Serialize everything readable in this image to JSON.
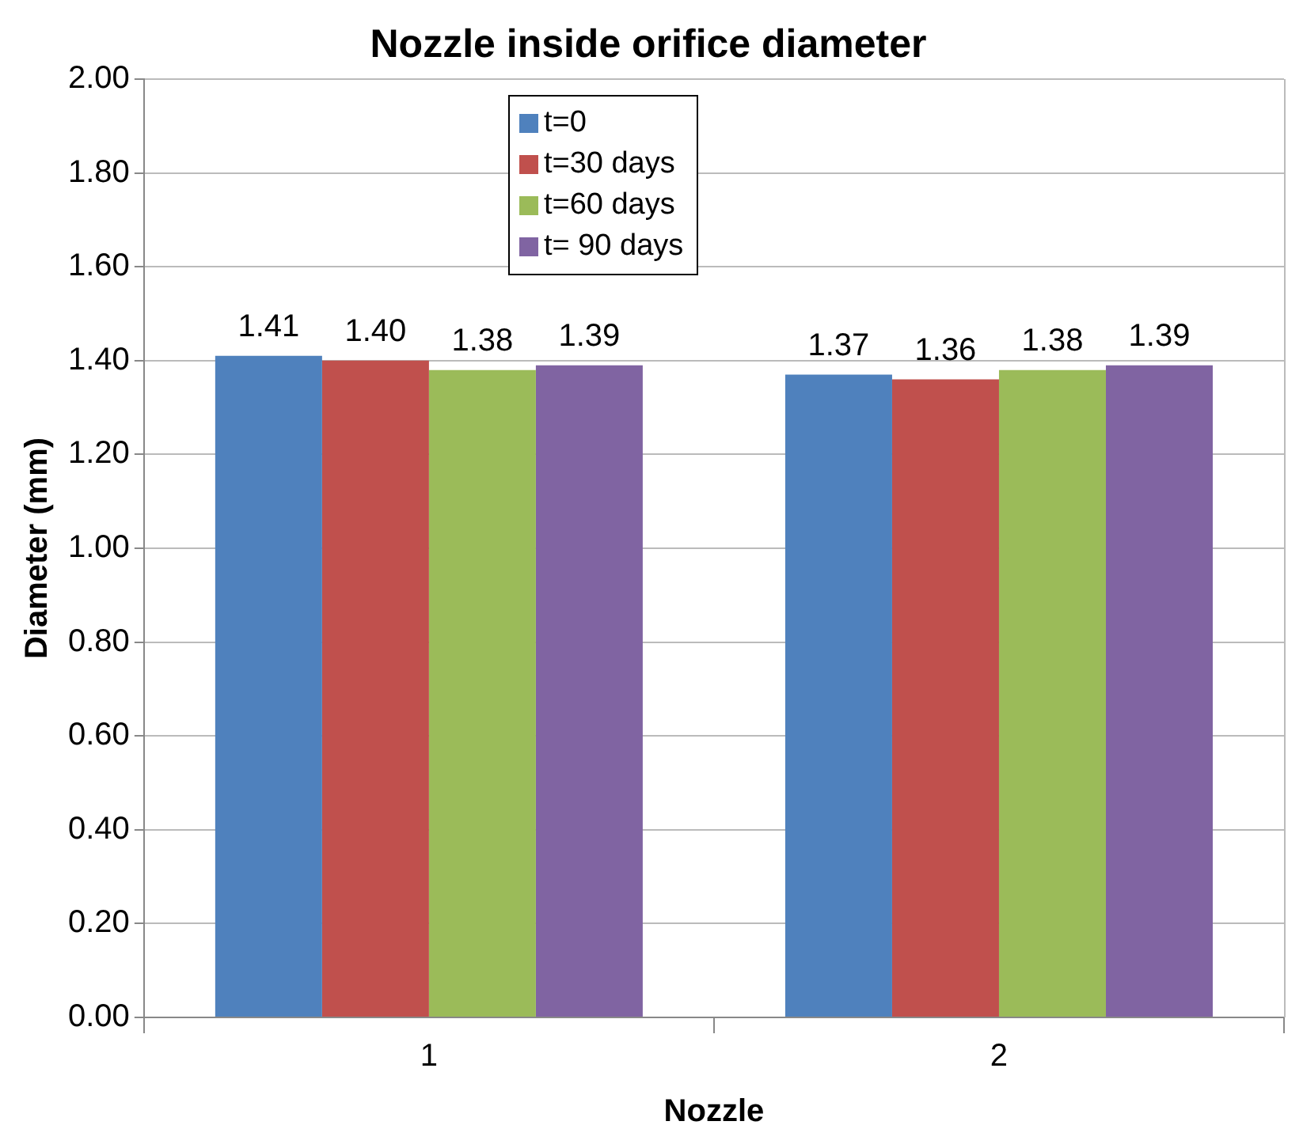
{
  "chart_data": {
    "type": "bar",
    "title": "Nozzle inside orifice diameter",
    "xlabel": "Nozzle",
    "ylabel": "Diameter (mm)",
    "categories": [
      "1",
      "2"
    ],
    "series": [
      {
        "name": "t=0",
        "color": "#4f81bd",
        "values": [
          1.41,
          1.37
        ],
        "value_labels": [
          "1.41",
          "1.37"
        ]
      },
      {
        "name": "t=30 days",
        "color": "#c0504d",
        "values": [
          1.4,
          1.36
        ],
        "value_labels": [
          "1.40",
          "1.36"
        ]
      },
      {
        "name": "t=60 days",
        "color": "#9bbb59",
        "values": [
          1.38,
          1.38
        ],
        "value_labels": [
          "1.38",
          "1.38"
        ]
      },
      {
        "name": "t= 90 days",
        "color": "#8064a2",
        "values": [
          1.39,
          1.39
        ],
        "value_labels": [
          "1.39",
          "1.39"
        ]
      }
    ],
    "ylim": [
      0,
      2
    ],
    "yticks": [
      {
        "value": 0,
        "label": "0.00"
      },
      {
        "value": 0.2,
        "label": "0.20"
      },
      {
        "value": 0.4,
        "label": "0.40"
      },
      {
        "value": 0.6,
        "label": "0.60"
      },
      {
        "value": 0.8,
        "label": "0.80"
      },
      {
        "value": 1,
        "label": "1.00"
      },
      {
        "value": 1.2,
        "label": "1.20"
      },
      {
        "value": 1.4,
        "label": "1.40"
      },
      {
        "value": 1.6,
        "label": "1.60"
      },
      {
        "value": 1.8,
        "label": "1.80"
      },
      {
        "value": 2,
        "label": "2.00"
      }
    ],
    "grid": "y",
    "legend": "top"
  }
}
